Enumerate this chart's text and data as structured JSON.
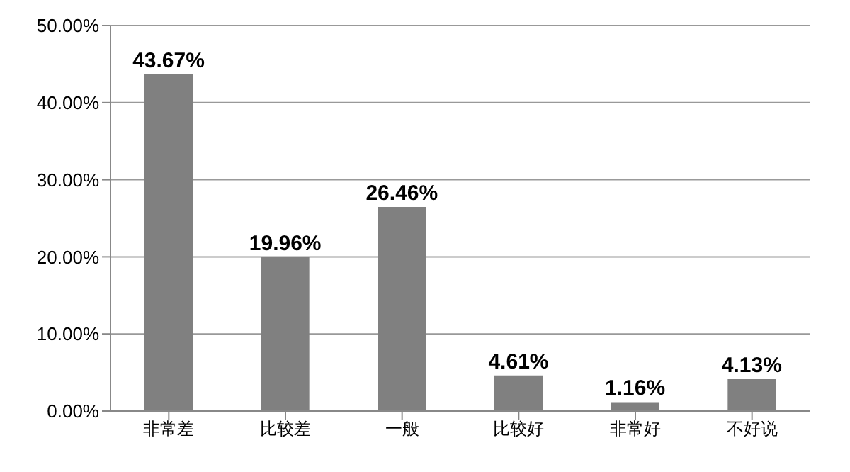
{
  "chart_data": {
    "type": "bar",
    "categories": [
      "非常差",
      "比较差",
      "一般",
      "比较好",
      "非常好",
      "不好说"
    ],
    "values": [
      43.67,
      19.96,
      26.46,
      4.61,
      1.16,
      4.13
    ],
    "value_labels": [
      "43.67%",
      "19.96%",
      "26.46%",
      "4.61%",
      "1.16%",
      "4.13%"
    ],
    "color": "#808080",
    "ylim": [
      0,
      50
    ],
    "yticks": [
      {
        "value": 0,
        "label": "0.00%"
      },
      {
        "value": 10,
        "label": "10.00%"
      },
      {
        "value": 20,
        "label": "20.00%"
      },
      {
        "value": 30,
        "label": "30.00%"
      },
      {
        "value": 40,
        "label": "40.00%"
      },
      {
        "value": 50,
        "label": "50.00%"
      }
    ],
    "grid": "y"
  }
}
